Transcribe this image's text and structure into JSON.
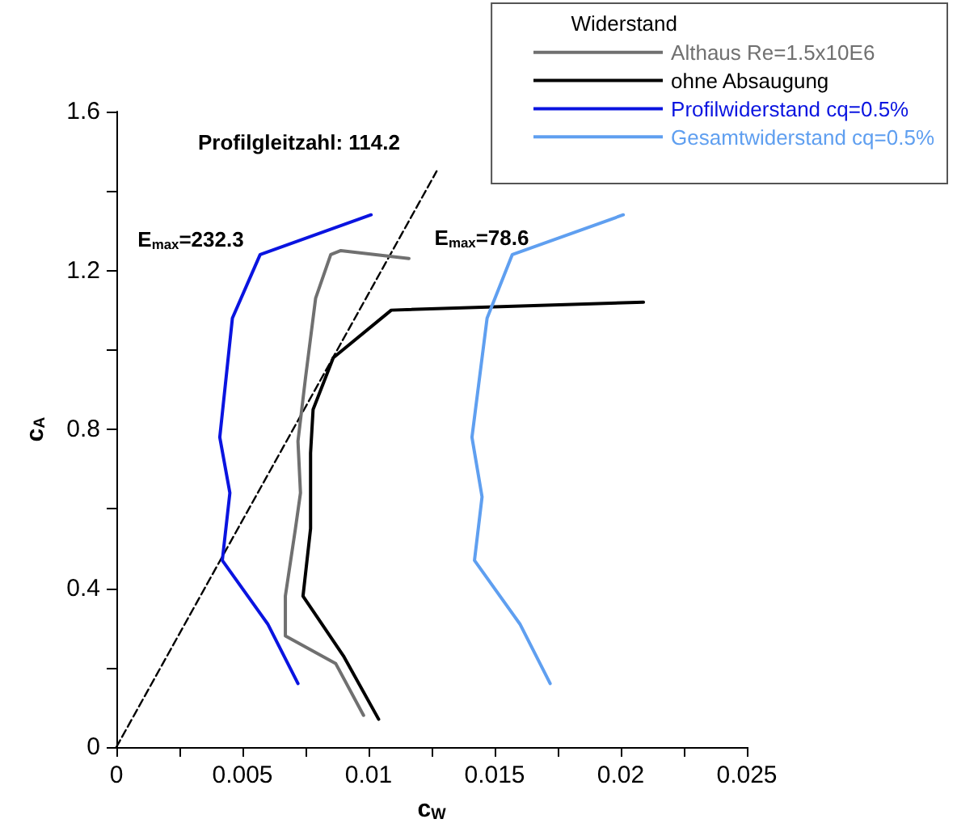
{
  "chart_data": {
    "type": "line",
    "xlabel": "c$_{W}$",
    "ylabel": "c$_{A}$",
    "legend_title": "Widerstand",
    "legend": "top right",
    "grid": false,
    "marker": "none",
    "xlim": [
      0,
      0.025
    ],
    "ylim": [
      0,
      1.6
    ],
    "xticks": [
      0,
      {
        "value": 0.0025,
        "label": null
      },
      0.005,
      {
        "value": 0.0075,
        "label": null
      },
      0.01,
      {
        "value": 0.0125,
        "label": null
      },
      0.015,
      {
        "value": 0.0175,
        "label": null
      },
      0.02,
      {
        "value": 0.0225,
        "label": null
      },
      0.025
    ],
    "yticks": [
      0,
      {
        "value": 0.2,
        "label": null
      },
      0.4,
      {
        "value": 0.6,
        "label": null
      },
      0.8,
      {
        "value": 1.0,
        "label": null
      },
      1.2,
      {
        "value": 1.4,
        "label": null
      },
      1.6
    ],
    "series": [
      {
        "name": "Althaus Re=1.5x10E6",
        "color": "#707070",
        "x": [
          0.0098,
          0.0087,
          0.0067,
          0.0067,
          0.0071,
          0.0073,
          0.0072,
          0.0075,
          0.0079,
          0.0085,
          0.0089,
          0.0116
        ],
        "values": [
          0.08,
          0.21,
          0.28,
          0.38,
          0.55,
          0.64,
          0.77,
          0.93,
          1.13,
          1.24,
          1.25,
          1.23
        ]
      },
      {
        "name": "ohne Absaugung",
        "color": "#000000",
        "x": [
          0.0104,
          0.009,
          0.0074,
          0.0077,
          0.0077,
          0.0078,
          0.0086,
          0.0109,
          0.0209
        ],
        "values": [
          0.07,
          0.23,
          0.38,
          0.55,
          0.74,
          0.85,
          0.98,
          1.1,
          1.12
        ]
      },
      {
        "name": "Profilwiderstand cq=0.5%",
        "color": "#0a14e0",
        "x": [
          0.0072,
          0.006,
          0.0042,
          0.0045,
          0.0041,
          0.0046,
          0.0057,
          0.0101
        ],
        "values": [
          0.16,
          0.31,
          0.47,
          0.64,
          0.78,
          1.08,
          1.24,
          1.34
        ]
      },
      {
        "name": "Gesamtwiderstand cq=0.5%",
        "color": "#5f9ff0",
        "x": [
          0.0172,
          0.016,
          0.0142,
          0.0145,
          0.0141,
          0.0147,
          0.0157,
          0.0201
        ],
        "values": [
          0.16,
          0.31,
          0.47,
          0.63,
          0.78,
          1.08,
          1.24,
          1.34
        ]
      },
      {
        "color": "#000000",
        "line_style": "dashed",
        "x": [
          0,
          0.0127
        ],
        "values": [
          0,
          1.45
        ]
      }
    ],
    "annotations": [
      "Profilgleitzahl: 114.2",
      "E$_{max}$=232.3",
      "E$_{max}$=78.6"
    ]
  }
}
